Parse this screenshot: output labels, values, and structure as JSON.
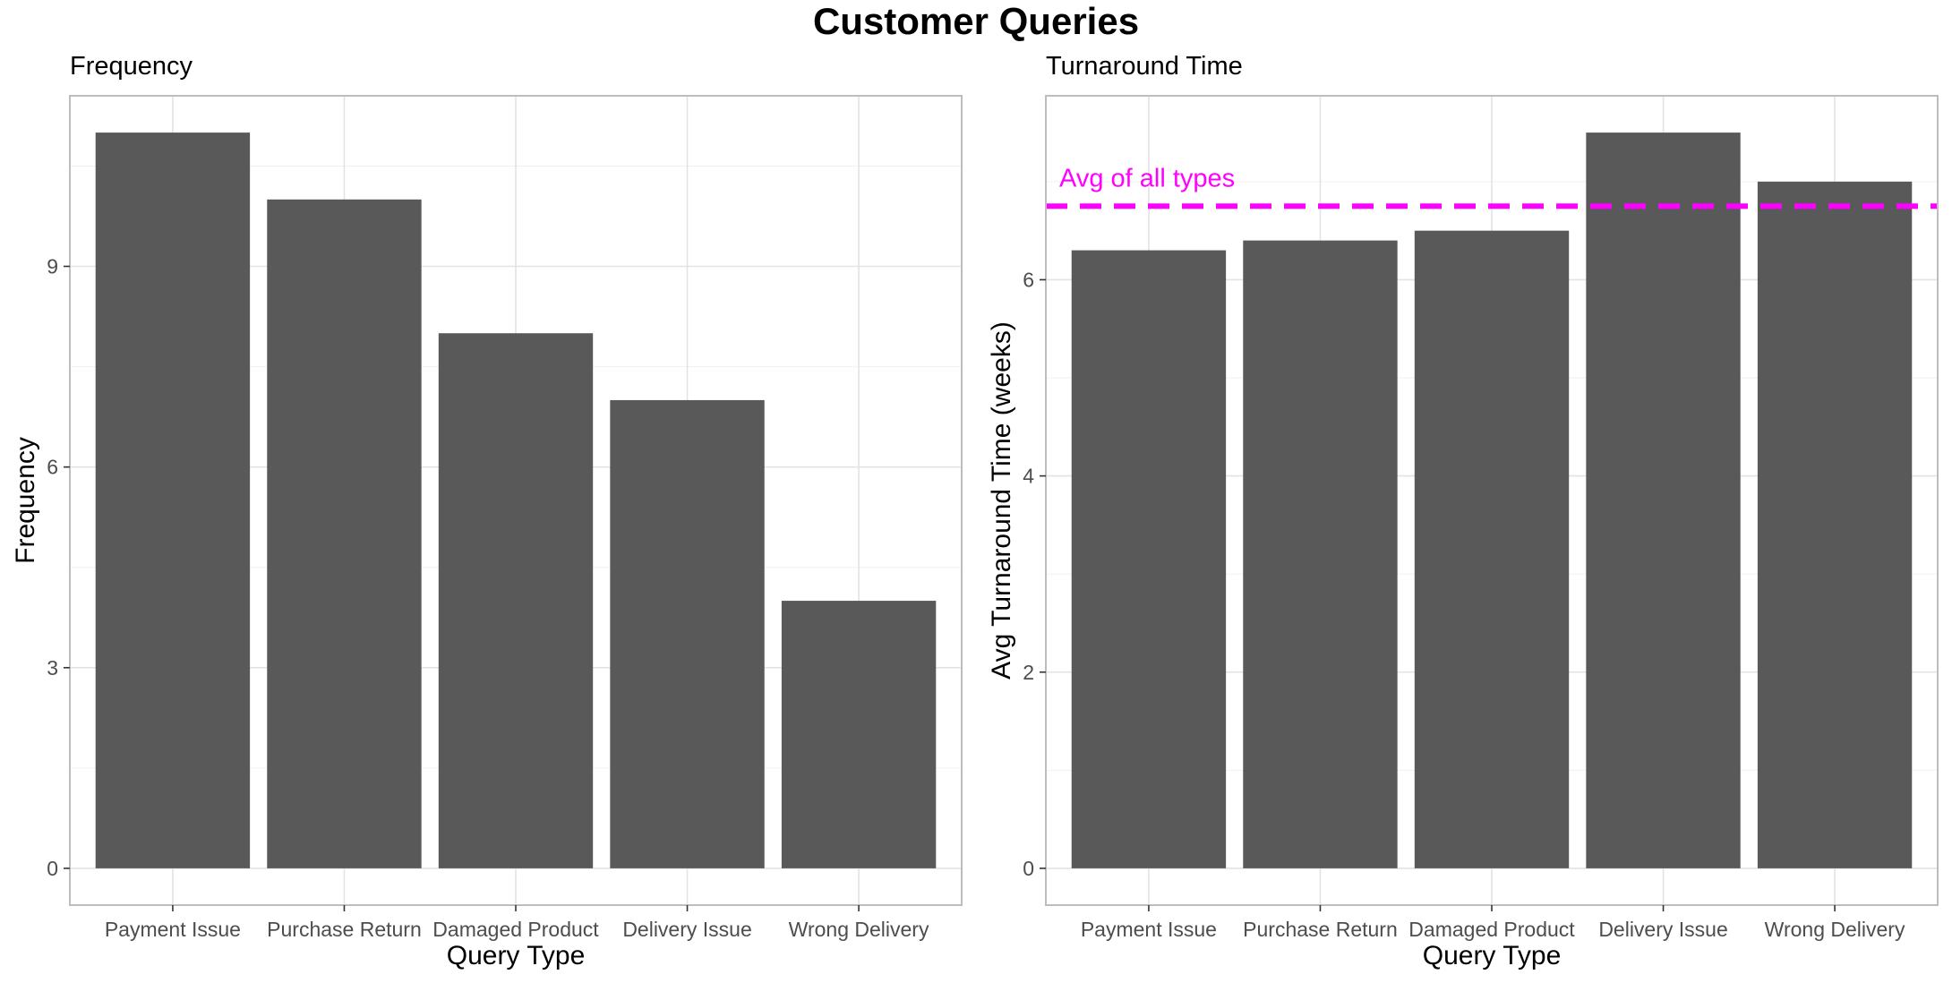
{
  "title": "Customer Queries",
  "chart_data": [
    {
      "type": "bar",
      "subtitle": "Frequency",
      "xlabel": "Query Type",
      "ylabel": "Frequency",
      "categories": [
        "Payment Issue",
        "Purchase Return",
        "Damaged Product",
        "Delivery Issue",
        "Wrong Delivery"
      ],
      "values": [
        11,
        10,
        8,
        7,
        4
      ],
      "ylim": [
        -0.55,
        11.55
      ],
      "yticks": [
        0,
        3,
        6,
        9
      ],
      "grid": true,
      "bar_color": "#595959"
    },
    {
      "type": "bar",
      "subtitle": "Turnaround Time",
      "xlabel": "Query Type",
      "ylabel": "Avg Turnaround Time (weeks)",
      "categories": [
        "Payment Issue",
        "Purchase Return",
        "Damaged Product",
        "Delivery Issue",
        "Wrong Delivery"
      ],
      "values": [
        6.3,
        6.4,
        6.5,
        7.5,
        7.0
      ],
      "ylim": [
        -0.375,
        7.875
      ],
      "yticks": [
        0,
        2,
        4,
        6
      ],
      "grid": true,
      "bar_color": "#595959",
      "reference_line": {
        "value": 6.75,
        "label": "Avg of all types",
        "color": "#ff00ff",
        "style": "dashed"
      }
    }
  ]
}
